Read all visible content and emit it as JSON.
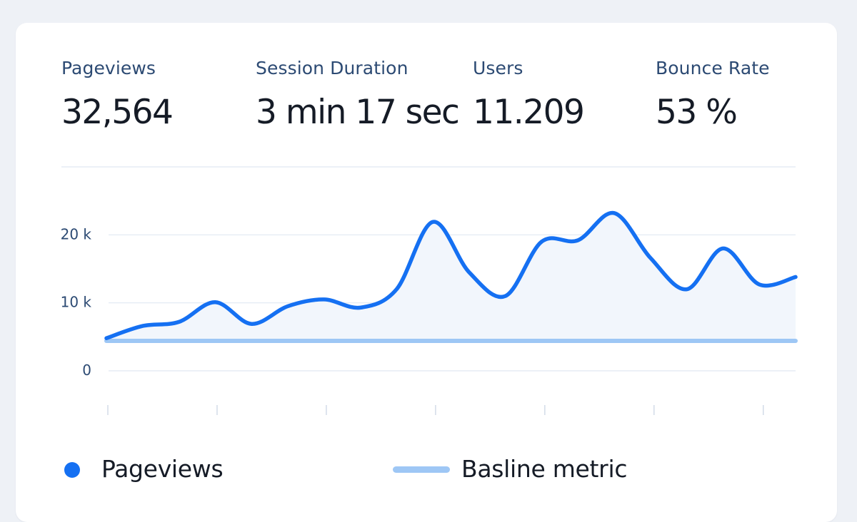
{
  "kpis": [
    {
      "label": "Pageviews",
      "value": "32,564"
    },
    {
      "label": "Session Duration",
      "value": "3 min 17 sec"
    },
    {
      "label": "Users",
      "value": "11.209"
    },
    {
      "label": "Bounce Rate",
      "value": "53 %"
    }
  ],
  "legend": {
    "pageviews_label": "Pageviews",
    "baseline_label": "Basline metric"
  },
  "colors": {
    "line": "#1570f2",
    "area": "#f2f6fc",
    "baseline": "#9ec7f5",
    "grid": "#e1e8f2",
    "tick": "#2c4a73"
  },
  "chart_data": {
    "type": "line",
    "y_ticks": [
      {
        "value": 0,
        "label": "0"
      },
      {
        "value": 10000,
        "label": "10 k"
      },
      {
        "value": 20000,
        "label": "20 k"
      }
    ],
    "ylim": [
      0,
      30000
    ],
    "series": [
      {
        "name": "Pageviews",
        "values": [
          4800,
          6600,
          7200,
          10100,
          6900,
          9500,
          10500,
          9300,
          12000,
          21900,
          14500,
          11000,
          19000,
          19200,
          23200,
          16600,
          12000,
          18000,
          12700,
          13800
        ]
      },
      {
        "name": "Basline metric",
        "values": [
          4400,
          4400,
          4400,
          4400,
          4400,
          4400,
          4400,
          4400,
          4400,
          4400,
          4400,
          4400,
          4400,
          4400,
          4400,
          4400,
          4400,
          4400,
          4400,
          4400
        ]
      }
    ],
    "grid": true,
    "legend_position": "bottom",
    "x_ticks": 7
  }
}
